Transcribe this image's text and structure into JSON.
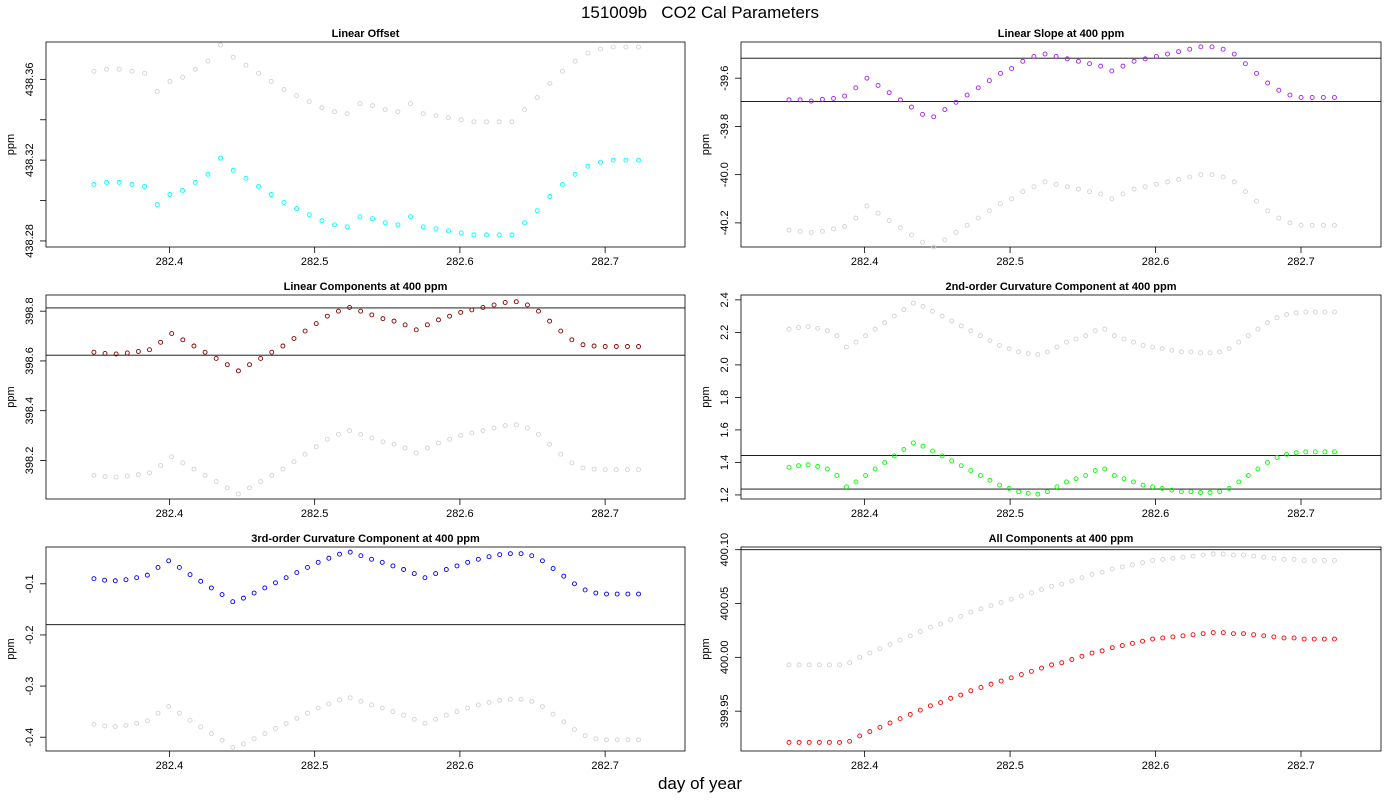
{
  "title": "151009b   CO2 Cal Parameters",
  "xlabel": "day of year",
  "chart_data": [
    {
      "type": "scatter",
      "title": "Linear Offset",
      "ylabel": "ppm",
      "xlim": [
        282.315,
        282.755
      ],
      "ylim": [
        438.277,
        438.3785
      ],
      "xticks": [
        "282.4",
        "282.5",
        "282.6",
        "282.7"
      ],
      "yticks": [
        "438.28",
        "438.32",
        "438.36"
      ],
      "ytick_values": [
        438.28,
        438.3,
        438.32,
        438.34,
        438.36
      ],
      "hlines": [],
      "series": [
        {
          "color": "#00ffff",
          "values": [
            438.308,
            438.309,
            438.309,
            438.308,
            438.307,
            438.298,
            438.303,
            438.305,
            438.309,
            438.313,
            438.321,
            438.315,
            438.311,
            438.307,
            438.303,
            438.299,
            438.296,
            438.293,
            438.29,
            438.288,
            438.287,
            438.292,
            438.291,
            438.289,
            438.288,
            438.292,
            438.287,
            438.286,
            438.285,
            438.284,
            438.283,
            438.283,
            438.283,
            438.283,
            438.289,
            438.295,
            438.302,
            438.308,
            438.313,
            438.317,
            438.319,
            438.32,
            438.32,
            438.32
          ]
        },
        {
          "color": "#d3d3d3",
          "values": [
            438.364,
            438.365,
            438.365,
            438.364,
            438.363,
            438.354,
            438.359,
            438.361,
            438.365,
            438.369,
            438.377,
            438.371,
            438.367,
            438.363,
            438.359,
            438.355,
            438.352,
            438.349,
            438.346,
            438.344,
            438.343,
            438.348,
            438.347,
            438.345,
            438.344,
            438.348,
            438.343,
            438.342,
            438.341,
            438.34,
            438.339,
            438.339,
            438.339,
            438.339,
            438.345,
            438.351,
            438.358,
            438.364,
            438.369,
            438.373,
            438.375,
            438.376,
            438.376,
            438.376
          ]
        }
      ]
    },
    {
      "type": "scatter",
      "title": "Linear Slope at 400 ppm",
      "ylabel": "ppm",
      "xlim": [
        282.315,
        282.755
      ],
      "ylim": [
        -40.3,
        -39.45
      ],
      "xticks": [
        "282.4",
        "282.5",
        "282.6",
        "282.7"
      ],
      "yticks": [
        "-40.2",
        "-40.0",
        "-39.8",
        "-39.6"
      ],
      "ytick_values": [
        -40.2,
        -40.0,
        -39.8,
        -39.6
      ],
      "hlines": [
        -39.517,
        -39.697
      ],
      "series": [
        {
          "color": "#a020f0",
          "values": [
            -39.69,
            -39.69,
            -39.695,
            -39.688,
            -39.684,
            -39.674,
            -39.64,
            -39.6,
            -39.63,
            -39.66,
            -39.69,
            -39.72,
            -39.75,
            -39.76,
            -39.73,
            -39.7,
            -39.67,
            -39.64,
            -39.61,
            -39.58,
            -39.56,
            -39.53,
            -39.51,
            -39.5,
            -39.51,
            -39.52,
            -39.53,
            -39.54,
            -39.55,
            -39.57,
            -39.55,
            -39.53,
            -39.52,
            -39.51,
            -39.5,
            -39.49,
            -39.48,
            -39.47,
            -39.47,
            -39.48,
            -39.5,
            -39.54,
            -39.58,
            -39.62,
            -39.65,
            -39.67,
            -39.68,
            -39.68,
            -39.68,
            -39.68
          ]
        },
        {
          "color": "#d3d3d3",
          "values": [
            -40.23,
            -40.235,
            -40.24,
            -40.235,
            -40.225,
            -40.215,
            -40.18,
            -40.13,
            -40.16,
            -40.19,
            -40.22,
            -40.25,
            -40.28,
            -40.3,
            -40.27,
            -40.24,
            -40.21,
            -40.18,
            -40.15,
            -40.12,
            -40.1,
            -40.07,
            -40.05,
            -40.03,
            -40.04,
            -40.05,
            -40.06,
            -40.07,
            -40.08,
            -40.1,
            -40.08,
            -40.06,
            -40.05,
            -40.04,
            -40.03,
            -40.02,
            -40.01,
            -40.0,
            -40.0,
            -40.01,
            -40.03,
            -40.07,
            -40.11,
            -40.15,
            -40.18,
            -40.2,
            -40.21,
            -40.21,
            -40.21,
            -40.21
          ]
        }
      ]
    },
    {
      "type": "scatter",
      "title": "Linear Components at 400 ppm",
      "ylabel": "ppm",
      "xlim": [
        282.315,
        282.755
      ],
      "ylim": [
        398.045,
        398.865
      ],
      "xticks": [
        "282.4",
        "282.5",
        "282.6",
        "282.7"
      ],
      "yticks": [
        "398.2",
        "398.4",
        "398.6",
        "398.8"
      ],
      "ytick_values": [
        398.2,
        398.4,
        398.6,
        398.8
      ],
      "hlines": [
        398.813,
        398.623
      ],
      "series": [
        {
          "color": "#8b0000",
          "values": [
            398.635,
            398.63,
            398.628,
            398.632,
            398.638,
            398.645,
            398.675,
            398.71,
            398.685,
            398.66,
            398.635,
            398.61,
            398.585,
            398.56,
            398.585,
            398.61,
            398.635,
            398.66,
            398.69,
            398.72,
            398.75,
            398.78,
            398.8,
            398.815,
            398.8,
            398.785,
            398.77,
            398.76,
            398.745,
            398.725,
            398.745,
            398.765,
            398.78,
            398.795,
            398.805,
            398.815,
            398.825,
            398.835,
            398.838,
            398.825,
            398.8,
            398.76,
            398.72,
            398.685,
            398.665,
            398.66,
            398.658,
            398.658,
            398.658,
            398.658
          ]
        },
        {
          "color": "#d3d3d3",
          "values": [
            398.14,
            398.135,
            398.133,
            398.137,
            398.143,
            398.15,
            398.18,
            398.215,
            398.19,
            398.165,
            398.14,
            398.115,
            398.09,
            398.065,
            398.09,
            398.115,
            398.14,
            398.165,
            398.195,
            398.225,
            398.255,
            398.285,
            398.305,
            398.32,
            398.305,
            398.29,
            398.275,
            398.265,
            398.25,
            398.23,
            398.25,
            398.27,
            398.285,
            398.3,
            398.31,
            398.32,
            398.33,
            398.34,
            398.343,
            398.33,
            398.305,
            398.265,
            398.225,
            398.19,
            398.17,
            398.165,
            398.163,
            398.163,
            398.163,
            398.163
          ]
        }
      ]
    },
    {
      "type": "scatter",
      "title": "2nd-order Curvature Component at 400 ppm",
      "ylabel": "ppm",
      "xlim": [
        282.315,
        282.755
      ],
      "ylim": [
        1.175,
        2.43
      ],
      "xticks": [
        "282.4",
        "282.5",
        "282.6",
        "282.7"
      ],
      "yticks": [
        "1.2",
        "1.4",
        "1.6",
        "1.8",
        "2.0",
        "2.2",
        "2.4"
      ],
      "ytick_values": [
        1.2,
        1.4,
        1.6,
        1.8,
        2.0,
        2.2,
        2.4
      ],
      "hlines": [
        1.443,
        1.236
      ],
      "series": [
        {
          "color": "#00ff00",
          "values": [
            1.37,
            1.38,
            1.385,
            1.375,
            1.36,
            1.32,
            1.25,
            1.28,
            1.32,
            1.36,
            1.4,
            1.44,
            1.48,
            1.52,
            1.5,
            1.47,
            1.44,
            1.41,
            1.38,
            1.35,
            1.32,
            1.29,
            1.26,
            1.24,
            1.22,
            1.21,
            1.205,
            1.22,
            1.25,
            1.28,
            1.3,
            1.32,
            1.35,
            1.36,
            1.32,
            1.3,
            1.28,
            1.26,
            1.25,
            1.24,
            1.23,
            1.22,
            1.22,
            1.215,
            1.215,
            1.22,
            1.24,
            1.28,
            1.32,
            1.36,
            1.4,
            1.43,
            1.45,
            1.46,
            1.465,
            1.465,
            1.465,
            1.465
          ]
        },
        {
          "color": "#d3d3d3",
          "values": [
            2.22,
            2.23,
            2.235,
            2.225,
            2.21,
            2.18,
            2.11,
            2.14,
            2.18,
            2.22,
            2.26,
            2.3,
            2.34,
            2.38,
            2.36,
            2.33,
            2.3,
            2.27,
            2.24,
            2.21,
            2.18,
            2.15,
            2.12,
            2.1,
            2.08,
            2.07,
            2.065,
            2.08,
            2.11,
            2.14,
            2.16,
            2.18,
            2.21,
            2.22,
            2.18,
            2.16,
            2.14,
            2.12,
            2.11,
            2.1,
            2.09,
            2.08,
            2.08,
            2.075,
            2.075,
            2.08,
            2.1,
            2.14,
            2.18,
            2.22,
            2.26,
            2.29,
            2.31,
            2.32,
            2.325,
            2.325,
            2.325,
            2.325
          ]
        }
      ]
    },
    {
      "type": "scatter",
      "title": "3rd-order Curvature Component at 400 ppm",
      "ylabel": "ppm",
      "xlim": [
        282.315,
        282.755
      ],
      "ylim": [
        -0.427,
        -0.028
      ],
      "xticks": [
        "282.4",
        "282.5",
        "282.6",
        "282.7"
      ],
      "yticks": [
        "-0.4",
        "-0.3",
        "-0.2",
        "-0.1"
      ],
      "ytick_values": [
        -0.4,
        -0.3,
        -0.2,
        -0.1
      ],
      "hlines": [
        -0.18
      ],
      "series": [
        {
          "color": "#0000ff",
          "values": [
            -0.09,
            -0.093,
            -0.094,
            -0.092,
            -0.088,
            -0.083,
            -0.068,
            -0.055,
            -0.068,
            -0.082,
            -0.095,
            -0.108,
            -0.121,
            -0.135,
            -0.128,
            -0.118,
            -0.108,
            -0.098,
            -0.088,
            -0.078,
            -0.068,
            -0.058,
            -0.05,
            -0.042,
            -0.038,
            -0.045,
            -0.052,
            -0.058,
            -0.065,
            -0.072,
            -0.08,
            -0.088,
            -0.08,
            -0.072,
            -0.065,
            -0.058,
            -0.052,
            -0.047,
            -0.043,
            -0.041,
            -0.041,
            -0.045,
            -0.055,
            -0.07,
            -0.085,
            -0.1,
            -0.112,
            -0.118,
            -0.12,
            -0.12,
            -0.12,
            -0.12
          ]
        },
        {
          "color": "#d3d3d3",
          "values": [
            -0.375,
            -0.378,
            -0.379,
            -0.377,
            -0.373,
            -0.368,
            -0.353,
            -0.34,
            -0.353,
            -0.367,
            -0.38,
            -0.393,
            -0.406,
            -0.42,
            -0.413,
            -0.403,
            -0.393,
            -0.383,
            -0.373,
            -0.363,
            -0.353,
            -0.343,
            -0.335,
            -0.327,
            -0.323,
            -0.33,
            -0.337,
            -0.343,
            -0.35,
            -0.357,
            -0.365,
            -0.373,
            -0.365,
            -0.357,
            -0.35,
            -0.343,
            -0.337,
            -0.332,
            -0.328,
            -0.326,
            -0.326,
            -0.33,
            -0.34,
            -0.355,
            -0.37,
            -0.385,
            -0.397,
            -0.403,
            -0.405,
            -0.405,
            -0.405,
            -0.405
          ]
        }
      ]
    },
    {
      "type": "scatter",
      "title": "All Components at 400 ppm",
      "ylabel": "ppm",
      "xlim": [
        282.315,
        282.755
      ],
      "ylim": [
        399.913,
        400.1025
      ],
      "xticks": [
        "282.4",
        "282.5",
        "282.6",
        "282.7"
      ],
      "yticks": [
        "399.95",
        "400.00",
        "400.05",
        "400.10"
      ],
      "ytick_values": [
        399.95,
        400.0,
        400.05,
        400.1
      ],
      "hlines": [
        400.1
      ],
      "series": [
        {
          "color": "#ff0000",
          "values": [
            399.921,
            399.921,
            399.921,
            399.921,
            399.921,
            399.921,
            399.922,
            399.927,
            399.931,
            399.935,
            399.939,
            399.943,
            399.947,
            399.951,
            399.955,
            399.958,
            399.962,
            399.965,
            399.969,
            399.972,
            399.975,
            399.978,
            399.981,
            399.984,
            399.987,
            399.99,
            399.993,
            399.995,
            399.998,
            400.001,
            400.004,
            400.006,
            400.009,
            400.011,
            400.013,
            400.015,
            400.017,
            400.018,
            400.019,
            400.02,
            400.021,
            400.022,
            400.023,
            400.023,
            400.022,
            400.022,
            400.021,
            400.02,
            400.019,
            400.018,
            400.018,
            400.017,
            400.017,
            400.017,
            400.017
          ]
        },
        {
          "color": "#d3d3d3",
          "values": [
            399.993,
            399.993,
            399.993,
            399.993,
            399.993,
            399.993,
            399.995,
            400.0,
            400.004,
            400.008,
            400.012,
            400.016,
            400.02,
            400.024,
            400.028,
            400.031,
            400.035,
            400.038,
            400.042,
            400.045,
            400.048,
            400.051,
            400.054,
            400.057,
            400.06,
            400.063,
            400.066,
            400.068,
            400.071,
            400.074,
            400.077,
            400.079,
            400.082,
            400.084,
            400.086,
            400.088,
            400.09,
            400.091,
            400.092,
            400.093,
            400.094,
            400.095,
            400.096,
            400.096,
            400.095,
            400.095,
            400.094,
            400.093,
            400.092,
            400.091,
            400.091,
            400.09,
            400.09,
            400.09,
            400.09
          ]
        }
      ]
    }
  ]
}
